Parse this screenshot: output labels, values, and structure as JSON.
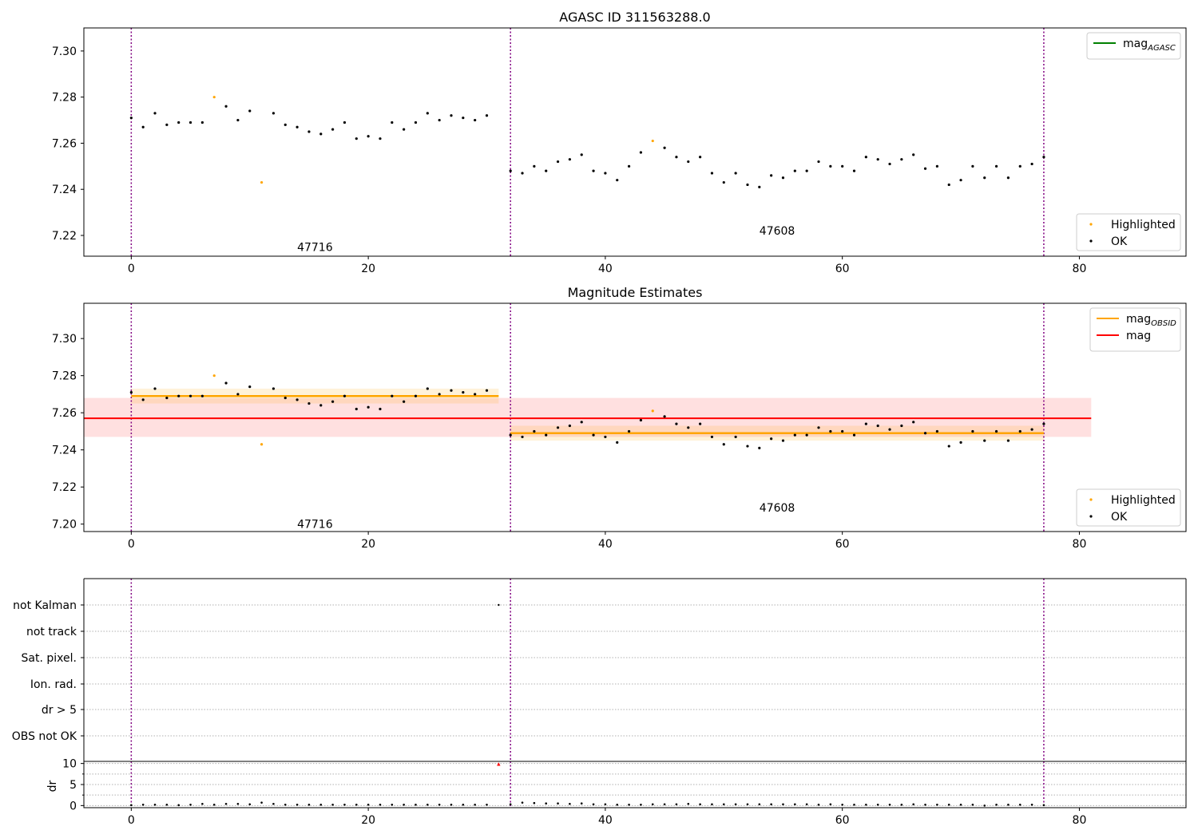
{
  "chart_data": [
    {
      "type": "scatter",
      "title": "AGASC ID 311563288.0",
      "xlim": [
        -4,
        89
      ],
      "ylim": [
        7.211,
        7.31
      ],
      "x_ticks": [
        0,
        20,
        40,
        60,
        80
      ],
      "y_ticks": [
        7.22,
        7.24,
        7.26,
        7.28,
        7.3
      ],
      "vlines": [
        0,
        32,
        77
      ],
      "annotations": [
        {
          "text": "47716",
          "x": 15.5,
          "y": 7.215
        },
        {
          "text": "47608",
          "x": 54.5,
          "y": 7.222
        }
      ],
      "series": [
        {
          "name": "Highlighted",
          "color": "#ffa500",
          "x": [
            7,
            11,
            44
          ],
          "y": [
            7.28,
            7.243,
            7.261
          ]
        },
        {
          "name": "OK",
          "color": "#000000",
          "x": [
            0,
            1,
            2,
            3,
            4,
            5,
            6,
            8,
            9,
            10,
            12,
            13,
            14,
            15,
            16,
            17,
            18,
            19,
            20,
            21,
            22,
            23,
            24,
            25,
            26,
            27,
            28,
            29,
            30,
            32,
            33,
            34,
            35,
            36,
            37,
            38,
            39,
            40,
            41,
            42,
            43,
            45,
            46,
            47,
            48,
            49,
            50,
            51,
            52,
            53,
            54,
            55,
            56,
            57,
            58,
            59,
            60,
            61,
            62,
            63,
            64,
            65,
            66,
            67,
            68,
            69,
            70,
            71,
            72,
            73,
            74,
            75,
            76,
            77
          ],
          "y": [
            7.271,
            7.267,
            7.273,
            7.268,
            7.269,
            7.269,
            7.269,
            7.276,
            7.27,
            7.274,
            7.273,
            7.268,
            7.267,
            7.265,
            7.264,
            7.266,
            7.269,
            7.262,
            7.263,
            7.262,
            7.269,
            7.266,
            7.269,
            7.273,
            7.27,
            7.272,
            7.271,
            7.27,
            7.272,
            7.248,
            7.247,
            7.25,
            7.248,
            7.252,
            7.253,
            7.255,
            7.248,
            7.247,
            7.244,
            7.25,
            7.256,
            7.258,
            7.254,
            7.252,
            7.254,
            7.247,
            7.243,
            7.247,
            7.242,
            7.241,
            7.246,
            7.245,
            7.248,
            7.248,
            7.252,
            7.25,
            7.25,
            7.248,
            7.254,
            7.253,
            7.251,
            7.253,
            7.255,
            7.249,
            7.25,
            7.242,
            7.244,
            7.25,
            7.245,
            7.25,
            7.245,
            7.25,
            7.251,
            7.254
          ]
        }
      ],
      "legend": [
        {
          "label": "mag",
          "sub": "AGASC",
          "color": "#008000",
          "placement": "upper right"
        }
      ]
    },
    {
      "type": "scatter",
      "title": "Magnitude Estimates",
      "xlim": [
        -4,
        89
      ],
      "ylim": [
        7.196,
        7.319
      ],
      "x_ticks": [
        0,
        20,
        40,
        60,
        80
      ],
      "y_ticks": [
        7.2,
        7.22,
        7.24,
        7.26,
        7.28,
        7.3
      ],
      "vlines": [
        0,
        32,
        77
      ],
      "annotations": [
        {
          "text": "47716",
          "x": 15.5,
          "y": 7.2
        },
        {
          "text": "47608",
          "x": 54.5,
          "y": 7.209
        }
      ],
      "mag": {
        "value": 7.257,
        "band": [
          7.247,
          7.268
        ],
        "x_range": [
          -4,
          81
        ],
        "color": "#ff0000"
      },
      "obsid_mags": [
        {
          "value": 7.269,
          "band": [
            7.265,
            7.273
          ],
          "x_range": [
            0,
            31
          ],
          "color": "#ffa500"
        },
        {
          "value": 7.249,
          "band": [
            7.245,
            7.253
          ],
          "x_range": [
            32,
            77
          ],
          "color": "#ffa500"
        }
      ],
      "series": [
        {
          "name": "Highlighted",
          "color": "#ffa500",
          "x": [
            7,
            11,
            44
          ],
          "y": [
            7.28,
            7.243,
            7.261
          ]
        },
        {
          "name": "OK",
          "color": "#000000",
          "x": [
            0,
            1,
            2,
            3,
            4,
            5,
            6,
            8,
            9,
            10,
            12,
            13,
            14,
            15,
            16,
            17,
            18,
            19,
            20,
            21,
            22,
            23,
            24,
            25,
            26,
            27,
            28,
            29,
            30,
            32,
            33,
            34,
            35,
            36,
            37,
            38,
            39,
            40,
            41,
            42,
            43,
            45,
            46,
            47,
            48,
            49,
            50,
            51,
            52,
            53,
            54,
            55,
            56,
            57,
            58,
            59,
            60,
            61,
            62,
            63,
            64,
            65,
            66,
            67,
            68,
            69,
            70,
            71,
            72,
            73,
            74,
            75,
            76,
            77
          ],
          "y": [
            7.271,
            7.267,
            7.273,
            7.268,
            7.269,
            7.269,
            7.269,
            7.276,
            7.27,
            7.274,
            7.273,
            7.268,
            7.267,
            7.265,
            7.264,
            7.266,
            7.269,
            7.262,
            7.263,
            7.262,
            7.269,
            7.266,
            7.269,
            7.273,
            7.27,
            7.272,
            7.271,
            7.27,
            7.272,
            7.248,
            7.247,
            7.25,
            7.248,
            7.252,
            7.253,
            7.255,
            7.248,
            7.247,
            7.244,
            7.25,
            7.256,
            7.258,
            7.254,
            7.252,
            7.254,
            7.247,
            7.243,
            7.247,
            7.242,
            7.241,
            7.246,
            7.245,
            7.248,
            7.248,
            7.252,
            7.25,
            7.25,
            7.248,
            7.254,
            7.253,
            7.251,
            7.253,
            7.255,
            7.249,
            7.25,
            7.242,
            7.244,
            7.25,
            7.245,
            7.25,
            7.245,
            7.25,
            7.251,
            7.254
          ]
        }
      ],
      "legend": [
        {
          "label": "mag",
          "sub": "OBSID",
          "color": "#ffa500",
          "placement": "upper right"
        },
        {
          "label": "mag",
          "sub": "",
          "color": "#ff0000",
          "placement": "upper right"
        }
      ]
    },
    {
      "type": "scatter",
      "title": "",
      "xlim": [
        -4,
        89
      ],
      "flag_rows": [
        "not Kalman",
        "not track",
        "Sat. pixel.",
        "Ion. rad.",
        "dr > 5",
        "OBS not OK"
      ],
      "flags": [
        {
          "row": "not Kalman",
          "x": [
            31
          ],
          "color": "#000000"
        }
      ],
      "vlines": [
        0,
        32,
        77
      ]
    },
    {
      "type": "scatter",
      "title": "",
      "ylabel": "dr",
      "xlim": [
        -4,
        89
      ],
      "ylim": [
        -0.5,
        10.5
      ],
      "x_ticks": [
        0,
        20,
        40,
        60,
        80
      ],
      "y_ticks": [
        0,
        5,
        10
      ],
      "vlines": [
        0,
        32,
        77
      ],
      "series": [
        {
          "name": "dr",
          "color": "#000000",
          "x": [
            0,
            1,
            2,
            3,
            4,
            5,
            6,
            7,
            8,
            9,
            10,
            11,
            12,
            13,
            14,
            15,
            16,
            17,
            18,
            19,
            20,
            21,
            22,
            23,
            24,
            25,
            26,
            27,
            28,
            29,
            30,
            32,
            33,
            34,
            35,
            36,
            37,
            38,
            39,
            40,
            41,
            42,
            43,
            44,
            45,
            46,
            47,
            48,
            49,
            50,
            51,
            52,
            53,
            54,
            55,
            56,
            57,
            58,
            59,
            60,
            61,
            62,
            63,
            64,
            65,
            66,
            67,
            68,
            69,
            70,
            71,
            72,
            73,
            74,
            75,
            76,
            77
          ],
          "y": [
            0.1,
            0.2,
            0.2,
            0.2,
            0.1,
            0.2,
            0.4,
            0.2,
            0.4,
            0.4,
            0.3,
            0.7,
            0.4,
            0.2,
            0.2,
            0.2,
            0.2,
            0.2,
            0.2,
            0.2,
            0.2,
            0.2,
            0.2,
            0.2,
            0.2,
            0.2,
            0.2,
            0.2,
            0.2,
            0.2,
            0.2,
            0.3,
            0.7,
            0.6,
            0.5,
            0.5,
            0.4,
            0.5,
            0.3,
            0.3,
            0.2,
            0.2,
            0.2,
            0.3,
            0.3,
            0.3,
            0.4,
            0.3,
            0.3,
            0.3,
            0.3,
            0.3,
            0.3,
            0.3,
            0.3,
            0.3,
            0.3,
            0.2,
            0.3,
            0.2,
            0.2,
            0.2,
            0.2,
            0.2,
            0.2,
            0.3,
            0.2,
            0.2,
            0.2,
            0.2,
            0.2,
            0.0,
            0.2,
            0.2,
            0.2,
            0.2,
            0.1
          ]
        },
        {
          "name": "dr flagged",
          "color": "#ff0000",
          "marker": "triangle",
          "x": [
            31
          ],
          "y": [
            9.8
          ]
        }
      ]
    }
  ],
  "legend_labels": {
    "highlighted": "Highlighted",
    "ok": "OK"
  }
}
